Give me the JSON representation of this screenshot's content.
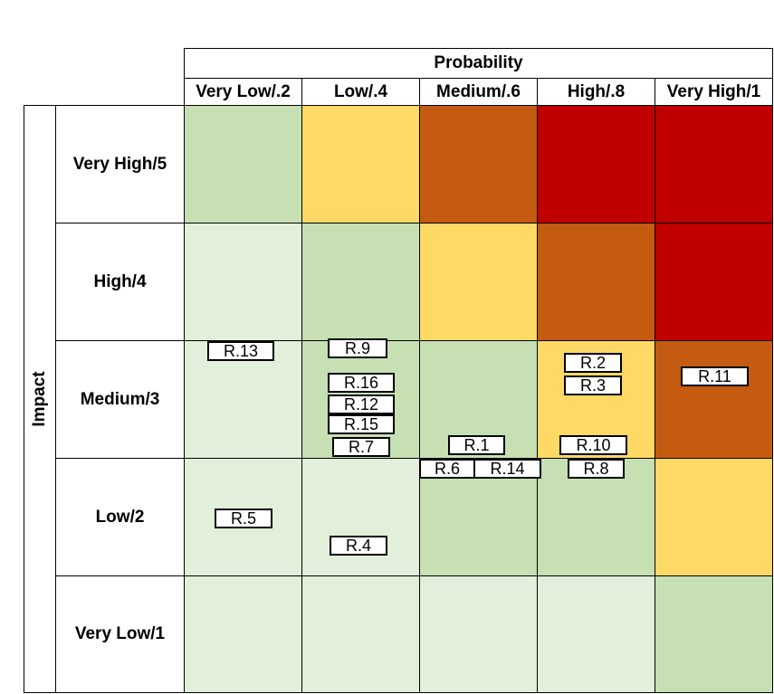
{
  "title": "Probability",
  "impact_label": "Impact",
  "columns": [
    "Very Low/.2",
    "Low/.4",
    "Medium/.6",
    "High/.8",
    "Very High/1"
  ],
  "rows": [
    "Very High/5",
    "High/4",
    "Medium/3",
    "Low/2",
    "Very Low/1"
  ],
  "colors": {
    "pale_green": "#E2EFDA",
    "green": "#C6E0B4",
    "yellow": "#FFD966",
    "orange": "#C55A11",
    "red": "#C00000"
  },
  "matrix_colors": [
    [
      "green",
      "yellow",
      "orange",
      "red",
      "red"
    ],
    [
      "pale_green",
      "green",
      "yellow",
      "orange",
      "red"
    ],
    [
      "pale_green",
      "green",
      "green",
      "yellow",
      "orange"
    ],
    [
      "pale_green",
      "pale_green",
      "green",
      "green",
      "yellow"
    ],
    [
      "pale_green",
      "pale_green",
      "pale_green",
      "pale_green",
      "green"
    ]
  ],
  "risks": [
    "R.13",
    "R.9",
    "R.16",
    "R.12",
    "R.15",
    "R.7",
    "R.2",
    "R.3",
    "R.11",
    "R.1",
    "R.10",
    "R.6",
    "R.14",
    "R.8",
    "R.5",
    "R.4"
  ]
}
